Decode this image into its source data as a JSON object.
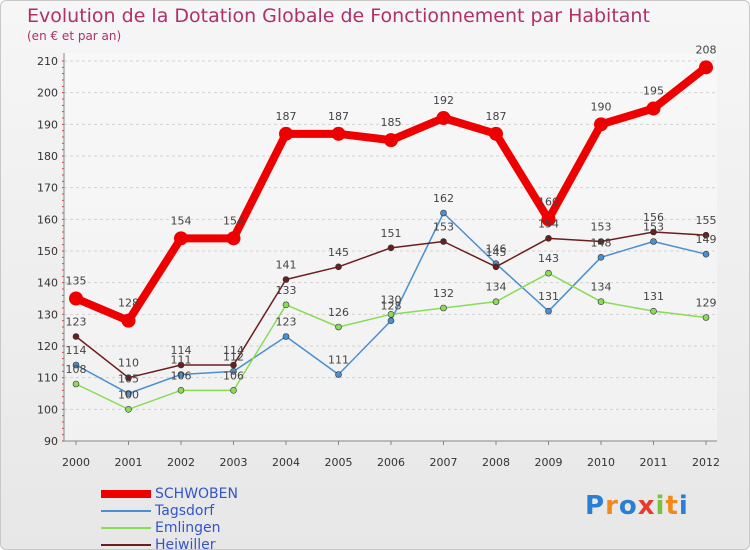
{
  "chart_data": {
    "type": "line",
    "title": "Evolution de la Dotation Globale de Fonctionnement par Habitant",
    "subtitle": "(en € et par an)",
    "xlabel": "",
    "ylabel": "",
    "ylim": [
      90,
      210
    ],
    "y_ticks": [
      90,
      100,
      110,
      120,
      130,
      140,
      150,
      160,
      170,
      180,
      190,
      200,
      210
    ],
    "categories": [
      "2000",
      "2001",
      "2002",
      "2003",
      "2004",
      "2005",
      "2006",
      "2007",
      "2008",
      "2009",
      "2010",
      "2011",
      "2012"
    ],
    "series": [
      {
        "name": "Tagsdorf",
        "color": "#4a8fd0",
        "values": [
          114,
          105,
          111,
          112,
          123,
          111,
          128,
          162,
          146,
          131,
          148,
          153,
          149
        ]
      },
      {
        "name": "Emlingen",
        "color": "#88dd55",
        "values": [
          108,
          100,
          106,
          106,
          133,
          126,
          130,
          132,
          134,
          143,
          134,
          131,
          129
        ]
      },
      {
        "name": "Heiwiller",
        "color": "#6b1e1e",
        "values": [
          123,
          110,
          114,
          114,
          141,
          145,
          151,
          153,
          145,
          154,
          153,
          156,
          155
        ]
      },
      {
        "name": "SCHWOBEN",
        "color": "#ee0000",
        "values": [
          135,
          128,
          154,
          154,
          187,
          187,
          185,
          192,
          187,
          160,
          190,
          195,
          208
        ]
      }
    ]
  },
  "legend": {
    "items": [
      {
        "label": "SCHWOBEN",
        "color": "#ee0000",
        "bold": true
      },
      {
        "label": "Tagsdorf",
        "color": "#4a8fd0",
        "bold": false
      },
      {
        "label": "Emlingen",
        "color": "#88dd55",
        "bold": false
      },
      {
        "label": "Heiwiller",
        "color": "#6b1e1e",
        "bold": false
      }
    ]
  },
  "logo": {
    "letters": [
      "P",
      "r",
      "o",
      "x",
      "i",
      "t",
      "i"
    ],
    "colors": [
      "#2a7fd4",
      "#f08a1c",
      "#2a7fd4",
      "#e63b2e",
      "#7ac143",
      "#f08a1c",
      "#2a7fd4"
    ]
  }
}
